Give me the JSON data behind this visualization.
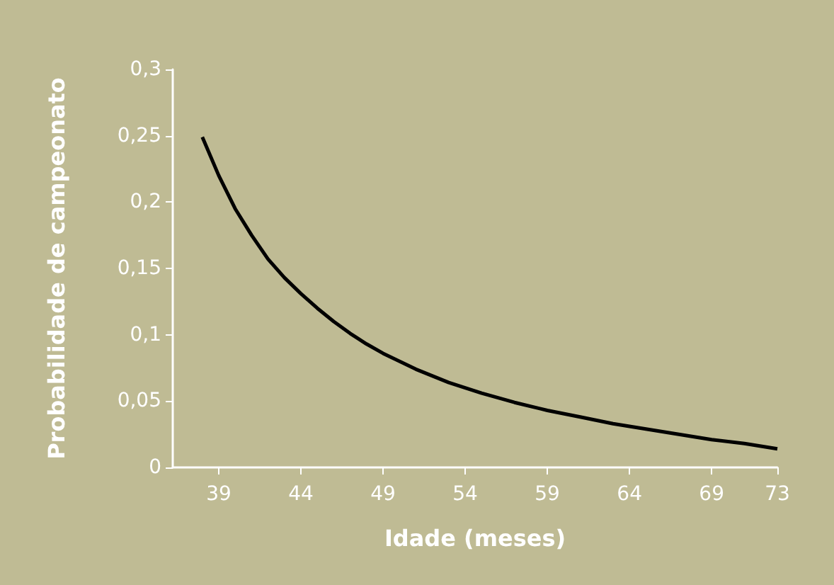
{
  "chart_data": {
    "type": "line",
    "xlabel": "Idade (meses)",
    "ylabel": "Probabilidade de campeonato",
    "x": [
      38,
      39,
      40,
      41,
      42,
      43,
      44,
      45,
      46,
      47,
      48,
      49,
      51,
      53,
      55,
      57,
      59,
      61,
      63,
      65,
      67,
      69,
      71,
      73
    ],
    "series": [
      {
        "color": "#000000",
        "values": [
          0.249,
          0.22,
          0.195,
          0.175,
          0.157,
          0.143,
          0.131,
          0.12,
          0.11,
          0.101,
          0.093,
          0.086,
          0.074,
          0.064,
          0.056,
          0.049,
          0.043,
          0.038,
          0.033,
          0.029,
          0.025,
          0.021,
          0.018,
          0.014
        ]
      }
    ],
    "xlim": [
      36.2,
      73
    ],
    "xticks": [
      39,
      44,
      49,
      54,
      59,
      64,
      69,
      73
    ],
    "ylim": [
      0,
      0.3
    ],
    "yticks": [
      0,
      {
        "value": 0.05,
        "label": "0,05"
      },
      {
        "value": 0.1,
        "label": "0,1"
      },
      {
        "value": 0.15,
        "label": "0,15"
      },
      {
        "value": 0.2,
        "label": "0,2"
      },
      {
        "value": 0.25,
        "label": "0,25"
      },
      {
        "value": 0.3,
        "label": "0,3"
      }
    ],
    "grid": false,
    "marker": "none",
    "line_style": "solid"
  }
}
